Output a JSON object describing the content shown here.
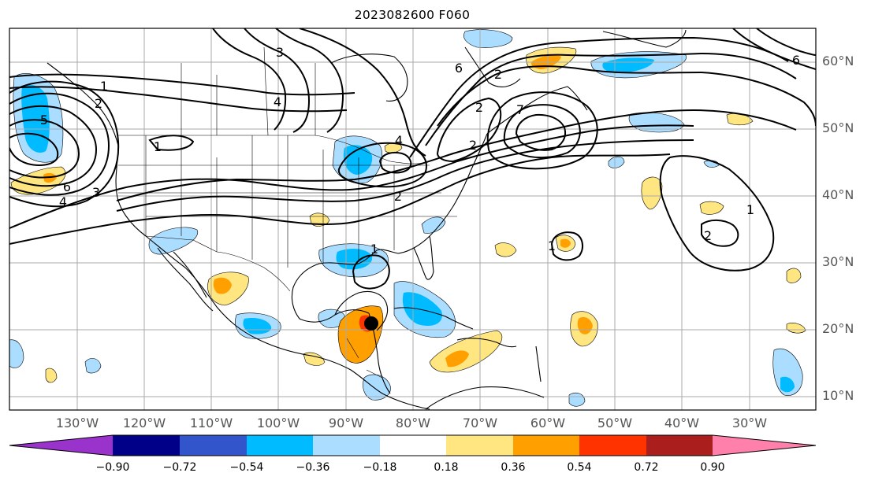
{
  "title": "2023082600 F060",
  "lat_labels": [
    "60°N",
    "50°N",
    "40°N",
    "30°N",
    "20°N",
    "10°N"
  ],
  "lon_labels": [
    "130°W",
    "120°W",
    "110°W",
    "100°W",
    "90°W",
    "80°W",
    "70°W",
    "60°W",
    "50°W",
    "40°W",
    "30°W"
  ],
  "colorbar": {
    "ticks": [
      "−0.90",
      "−0.72",
      "−0.54",
      "−0.36",
      "−0.18",
      "0.18",
      "0.36",
      "0.54",
      "0.72",
      "0.90"
    ],
    "colors": [
      "#9933cc",
      "#000088",
      "#3355cc",
      "#00bbff",
      "#aaddff",
      "#ffffff",
      "#ffe680",
      "#ffa000",
      "#ff3300",
      "#aa1e1e",
      "#ff80aa"
    ]
  },
  "contour_labels": [
    "1",
    "2",
    "3",
    "4",
    "5",
    "6",
    "1",
    "2",
    "3",
    "4",
    "6",
    "2",
    "1",
    "2",
    "4",
    "6",
    "7",
    "2",
    "1",
    "2",
    "1"
  ],
  "storm_marker": "tropical-cyclone-center"
}
